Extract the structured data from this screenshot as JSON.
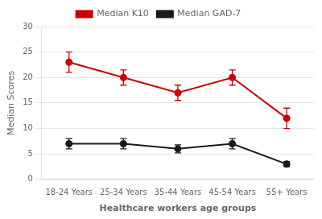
{
  "chart_data": {
    "type": "line",
    "categories": [
      "18-24 Years",
      "25-34 Years",
      "35-44 Years",
      "45-54 Years",
      "55+ Years"
    ],
    "series": [
      {
        "name": "Median K10",
        "color": "#cc0000",
        "marker": "circle",
        "values": [
          23,
          20,
          17,
          20,
          12
        ],
        "errors": [
          2,
          1.5,
          1.5,
          1.5,
          2
        ]
      },
      {
        "name": "Median GAD-7",
        "color": "#1a1a1a",
        "marker": "circle",
        "values": [
          7,
          7,
          6,
          7,
          3
        ],
        "errors": [
          1,
          1,
          0.8,
          1,
          0.5
        ]
      }
    ],
    "xlabel": "Healthcare workers age groups",
    "ylabel": "Median Scores",
    "ylim": [
      0,
      30
    ],
    "yticks": [
      0,
      5,
      10,
      15,
      20,
      25,
      30
    ],
    "grid": true,
    "legend": "top"
  }
}
